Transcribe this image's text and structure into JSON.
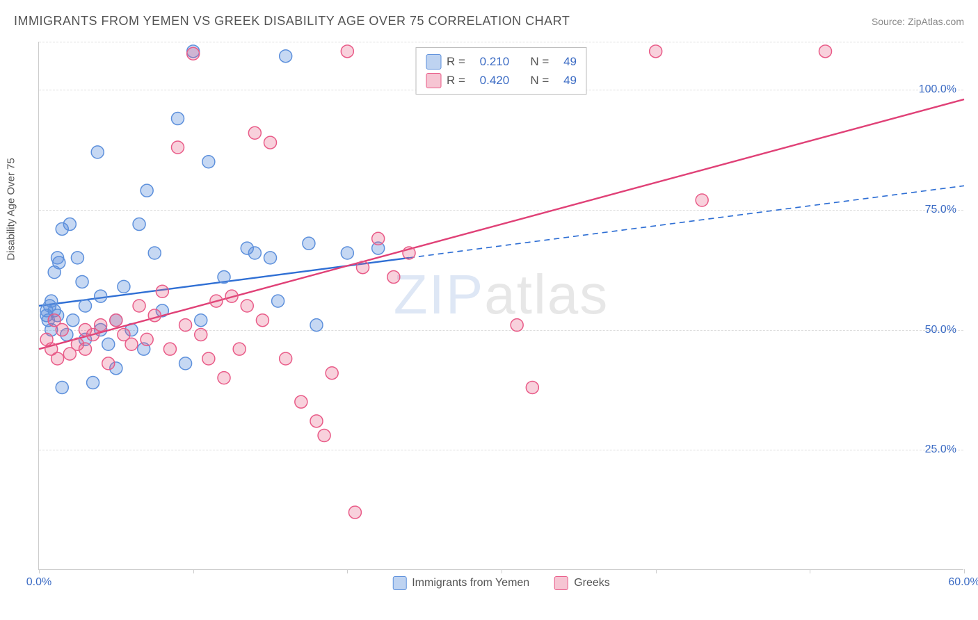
{
  "title": "IMMIGRANTS FROM YEMEN VS GREEK DISABILITY AGE OVER 75 CORRELATION CHART",
  "source_label": "Source: ",
  "source_name": "ZipAtlas.com",
  "watermark_left": "ZIP",
  "watermark_right": "atlas",
  "chart": {
    "type": "scatter",
    "background_color": "#ffffff",
    "grid_color": "#dddddd",
    "axis_color": "#cccccc",
    "yaxis_title": "Disability Age Over 75",
    "xlim": [
      0,
      60
    ],
    "ylim": [
      0,
      110
    ],
    "xtick_positions": [
      0,
      10,
      20,
      30,
      40,
      50,
      60
    ],
    "xtick_labels": [
      "0.0%",
      "",
      "",
      "",
      "",
      "",
      "60.0%"
    ],
    "ytick_positions": [
      25,
      50,
      75,
      100,
      110
    ],
    "ytick_labels": [
      "25.0%",
      "50.0%",
      "75.0%",
      "100.0%",
      ""
    ],
    "marker_radius": 9,
    "marker_stroke_width": 1.5,
    "line_width": 2.4,
    "series": [
      {
        "id": "yemen",
        "label": "Immigrants from Yemen",
        "fill_color": "rgba(93,144,220,0.35)",
        "stroke_color": "#5d90dc",
        "swatch_fill": "rgba(93,144,220,0.40)",
        "swatch_border": "#5d90dc",
        "r_value": "0.210",
        "n_value": "49",
        "trend": {
          "x1": 0,
          "y1": 55,
          "x2": 60,
          "y2": 80,
          "dash_from_x": 24,
          "color": "#2f6fd4"
        },
        "points": [
          [
            0.5,
            53
          ],
          [
            0.5,
            54
          ],
          [
            0.6,
            52
          ],
          [
            0.7,
            55
          ],
          [
            0.8,
            50
          ],
          [
            0.8,
            56
          ],
          [
            1.0,
            62
          ],
          [
            1.0,
            54
          ],
          [
            1.2,
            53
          ],
          [
            1.2,
            65
          ],
          [
            1.3,
            64
          ],
          [
            1.5,
            38
          ],
          [
            1.5,
            71
          ],
          [
            1.8,
            49
          ],
          [
            2.0,
            72
          ],
          [
            2.2,
            52
          ],
          [
            2.5,
            65
          ],
          [
            2.8,
            60
          ],
          [
            3.0,
            48
          ],
          [
            3.0,
            55
          ],
          [
            3.5,
            39
          ],
          [
            4.0,
            50
          ],
          [
            4.0,
            57
          ],
          [
            4.5,
            47
          ],
          [
            5.0,
            52
          ],
          [
            5.0,
            42
          ],
          [
            5.5,
            59
          ],
          [
            6.0,
            50
          ],
          [
            6.5,
            72
          ],
          [
            7.0,
            79
          ],
          [
            7.5,
            66
          ],
          [
            8.0,
            54
          ],
          [
            9.0,
            94
          ],
          [
            9.5,
            43
          ],
          [
            10.0,
            108
          ],
          [
            10.5,
            52
          ],
          [
            11.0,
            85
          ],
          [
            12.0,
            61
          ],
          [
            13.5,
            67
          ],
          [
            14.0,
            66
          ],
          [
            15.0,
            65
          ],
          [
            15.5,
            56
          ],
          [
            16.0,
            107
          ],
          [
            17.5,
            68
          ],
          [
            18.0,
            51
          ],
          [
            20.0,
            66
          ],
          [
            22.0,
            67
          ],
          [
            3.8,
            87
          ],
          [
            6.8,
            46
          ]
        ]
      },
      {
        "id": "greeks",
        "label": "Greeks",
        "fill_color": "rgba(230,90,130,0.28)",
        "stroke_color": "#e95b88",
        "swatch_fill": "rgba(230,90,130,0.35)",
        "swatch_border": "#e95b88",
        "r_value": "0.420",
        "n_value": "49",
        "trend": {
          "x1": 0,
          "y1": 46,
          "x2": 60,
          "y2": 98,
          "dash_from_x": null,
          "color": "#e04177"
        },
        "points": [
          [
            0.5,
            48
          ],
          [
            0.8,
            46
          ],
          [
            1.0,
            52
          ],
          [
            1.2,
            44
          ],
          [
            1.5,
            50
          ],
          [
            2.0,
            45
          ],
          [
            2.5,
            47
          ],
          [
            3.0,
            46
          ],
          [
            3.0,
            50
          ],
          [
            3.5,
            49
          ],
          [
            4.0,
            51
          ],
          [
            4.5,
            43
          ],
          [
            5.0,
            52
          ],
          [
            5.5,
            49
          ],
          [
            6.0,
            47
          ],
          [
            6.5,
            55
          ],
          [
            7.0,
            48
          ],
          [
            7.5,
            53
          ],
          [
            8.0,
            58
          ],
          [
            8.5,
            46
          ],
          [
            9.0,
            88
          ],
          [
            9.5,
            51
          ],
          [
            10.0,
            107.5
          ],
          [
            10.5,
            49
          ],
          [
            11.0,
            44
          ],
          [
            11.5,
            56
          ],
          [
            12.0,
            40
          ],
          [
            12.5,
            57
          ],
          [
            13.0,
            46
          ],
          [
            13.5,
            55
          ],
          [
            14.0,
            91
          ],
          [
            14.5,
            52
          ],
          [
            15.0,
            89
          ],
          [
            16.0,
            44
          ],
          [
            17.0,
            35
          ],
          [
            18.0,
            31
          ],
          [
            18.5,
            28
          ],
          [
            19.0,
            41
          ],
          [
            20.0,
            108
          ],
          [
            21.0,
            63
          ],
          [
            22.0,
            69
          ],
          [
            23.0,
            61
          ],
          [
            24.0,
            66
          ],
          [
            20.5,
            12
          ],
          [
            31.0,
            51
          ],
          [
            32.0,
            38
          ],
          [
            40.0,
            108
          ],
          [
            43.0,
            77
          ],
          [
            51.0,
            108
          ]
        ]
      }
    ],
    "legend": {
      "r_label": "R =",
      "n_label": "N =",
      "box_border": "#bbbbbb"
    }
  }
}
